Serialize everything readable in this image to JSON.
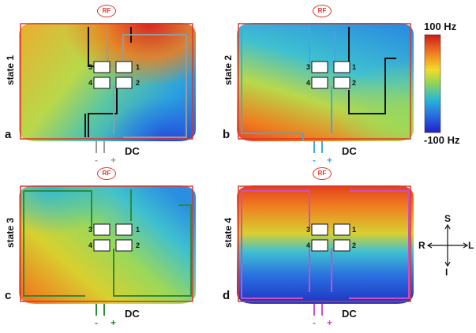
{
  "colorbar": {
    "max_label": "100 Hz",
    "min_label": "-100 Hz",
    "colors": [
      "#cc1a1a",
      "#f07a1f",
      "#f2dc2a",
      "#8ed35a",
      "#2ab8d8",
      "#2a6fe0",
      "#2020c8"
    ]
  },
  "compass": {
    "up": "S",
    "down": "I",
    "left": "R",
    "right": "L"
  },
  "rf_label": "RF",
  "dc_label": "DC",
  "switch_numbers": [
    "1",
    "2",
    "3",
    "4"
  ],
  "panels": [
    {
      "letter": "a",
      "state": "state 1",
      "polarity": [
        "-",
        "+"
      ],
      "circuit_color": "#9a9a9a",
      "pattern": "diag-up-right"
    },
    {
      "letter": "b",
      "state": "state 2",
      "polarity": [
        "-",
        "+"
      ],
      "circuit_color": "#3fa9e0",
      "pattern": "diag-up-left"
    },
    {
      "letter": "c",
      "state": "state 3",
      "polarity": [
        "-",
        "+"
      ],
      "circuit_color": "#2e8b3a",
      "pattern": "diag-down-left"
    },
    {
      "letter": "d",
      "state": "state 4",
      "polarity": [
        "-",
        "+"
      ],
      "circuit_color": "#c84fc8",
      "pattern": "top-bottom"
    }
  ]
}
